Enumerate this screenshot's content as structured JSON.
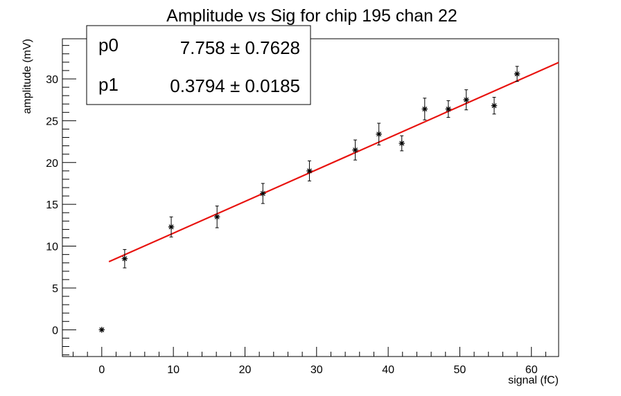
{
  "chart_data": {
    "type": "scatter",
    "title": "Amplitude vs Sig for chip 195 chan 22",
    "xlabel": "signal (fC)",
    "ylabel": "amplitude (mV)",
    "xlim": [
      -5.5,
      63.8
    ],
    "ylim": [
      -3.2,
      34.8
    ],
    "x_ticks": [
      0,
      10,
      20,
      30,
      40,
      50,
      60
    ],
    "y_ticks": [
      0,
      5,
      10,
      15,
      20,
      25,
      30
    ],
    "x_tick_labels": [
      "0",
      "10",
      "20",
      "30",
      "40",
      "50",
      "60"
    ],
    "y_tick_labels": [
      "0",
      "5",
      "10",
      "15",
      "20",
      "25",
      "30"
    ],
    "grid": false,
    "series": [
      {
        "marker": "star",
        "color": "#000000",
        "points": [
          {
            "x": 0.0,
            "y": 0.0,
            "err": 0.0
          },
          {
            "x": 3.2,
            "y": 8.5,
            "err": 1.1
          },
          {
            "x": 9.7,
            "y": 12.3,
            "err": 1.2
          },
          {
            "x": 16.1,
            "y": 13.5,
            "err": 1.3
          },
          {
            "x": 22.5,
            "y": 16.3,
            "err": 1.2
          },
          {
            "x": 29.0,
            "y": 19.0,
            "err": 1.2
          },
          {
            "x": 35.4,
            "y": 21.5,
            "err": 1.2
          },
          {
            "x": 38.7,
            "y": 23.4,
            "err": 1.3
          },
          {
            "x": 41.9,
            "y": 22.3,
            "err": 0.9
          },
          {
            "x": 45.1,
            "y": 26.4,
            "err": 1.3
          },
          {
            "x": 48.4,
            "y": 26.4,
            "err": 1.0
          },
          {
            "x": 50.9,
            "y": 27.5,
            "err": 1.2
          },
          {
            "x": 54.8,
            "y": 26.8,
            "err": 1.0
          },
          {
            "x": 58.0,
            "y": 30.6,
            "err": 0.9
          }
        ]
      }
    ],
    "fit": {
      "color": "#e8130f",
      "x_range": [
        1.0,
        63.8
      ],
      "p0": 7.758,
      "p1": 0.3794
    },
    "stats_box": {
      "position": "top-left",
      "rows": [
        {
          "name": "p0",
          "value": "7.758 ± 0.7628"
        },
        {
          "name": "p1",
          "value": "0.3794 ± 0.0185"
        }
      ]
    }
  }
}
